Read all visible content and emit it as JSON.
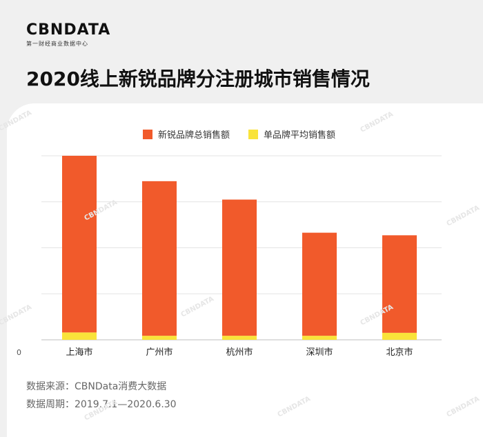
{
  "brand": {
    "name": "CBNDATA",
    "tagline": "第一财经商业数据中心"
  },
  "title": "2020线上新锐品牌分注册城市销售情况",
  "watermark": "CBNDATA",
  "chart_data": {
    "type": "bar",
    "stacked": true,
    "title": "2020线上新锐品牌分注册城市销售情况",
    "categories": [
      "上海市",
      "广州市",
      "杭州市",
      "深圳市",
      "北京市"
    ],
    "series": [
      {
        "name": "新锐品牌总销售额",
        "color": "#f15a2b",
        "values": [
          96,
          84,
          74,
          56,
          53
        ]
      },
      {
        "name": "单品牌平均销售额",
        "color": "#f9e33a",
        "values": [
          4,
          2.2,
          2.2,
          2.2,
          3.8
        ]
      }
    ],
    "ylim": [
      0,
      100
    ],
    "yticks": [
      0,
      25,
      50,
      75,
      100
    ],
    "ytick_labels": [
      "0"
    ],
    "xlabel": "",
    "ylabel": "",
    "grid": true,
    "legend": "top-center"
  },
  "source": {
    "line1": "数据来源：CBNData消费大数据",
    "line2": "数据周期：2019.7.1—2020.6.30"
  }
}
